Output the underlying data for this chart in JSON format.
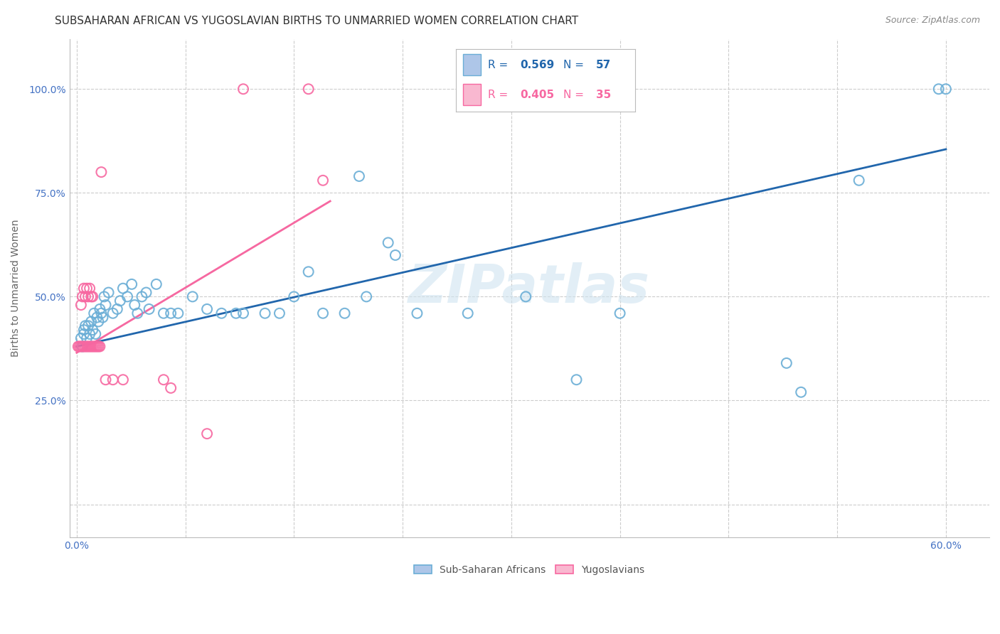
{
  "title": "SUBSAHARAN AFRICAN VS YUGOSLAVIAN BIRTHS TO UNMARRIED WOMEN CORRELATION CHART",
  "source": "Source: ZipAtlas.com",
  "ylabel": "Births to Unmarried Women",
  "blue_color": "#6baed6",
  "pink_color": "#f768a1",
  "trend_blue_color": "#2166ac",
  "trend_pink_color": "#cccccc",
  "watermark": "ZIPatlas",
  "xlim": [
    -0.005,
    0.63
  ],
  "ylim": [
    -0.08,
    1.12
  ],
  "ytick_vals": [
    0.0,
    0.25,
    0.5,
    0.75,
    1.0
  ],
  "ytick_labels": [
    "",
    "25.0%",
    "50.0%",
    "75.0%",
    "100.0%"
  ],
  "xtick_vals": [
    0.0,
    0.075,
    0.15,
    0.225,
    0.3,
    0.375,
    0.45,
    0.525,
    0.6
  ],
  "blue_trend_x": [
    0.0,
    0.6
  ],
  "blue_trend_y": [
    0.38,
    0.855
  ],
  "pink_trend_x": [
    0.0,
    0.175
  ],
  "pink_trend_y": [
    0.365,
    0.73
  ],
  "axis_color": "#4472c4",
  "tick_color": "#4472c4",
  "grid_color": "#cccccc",
  "background_color": "#ffffff",
  "title_fontsize": 11,
  "tick_fontsize": 10,
  "ylabel_fontsize": 10,
  "source_fontsize": 9,
  "blue_scatter_x": [
    0.003,
    0.004,
    0.005,
    0.005,
    0.006,
    0.007,
    0.008,
    0.009,
    0.01,
    0.011,
    0.012,
    0.013,
    0.014,
    0.015,
    0.016,
    0.017,
    0.018,
    0.019,
    0.02,
    0.022,
    0.025,
    0.028,
    0.03,
    0.032,
    0.035,
    0.038,
    0.04,
    0.042,
    0.045,
    0.048,
    0.05,
    0.055,
    0.06,
    0.065,
    0.07,
    0.08,
    0.09,
    0.1,
    0.11,
    0.115,
    0.13,
    0.14,
    0.15,
    0.16,
    0.17,
    0.185,
    0.195,
    0.2,
    0.215,
    0.22,
    0.235,
    0.27,
    0.31,
    0.345,
    0.375,
    0.49,
    0.5,
    0.54,
    0.595,
    0.6
  ],
  "blue_scatter_y": [
    0.4,
    0.38,
    0.42,
    0.41,
    0.43,
    0.4,
    0.43,
    0.41,
    0.44,
    0.42,
    0.46,
    0.41,
    0.45,
    0.44,
    0.47,
    0.46,
    0.45,
    0.5,
    0.48,
    0.51,
    0.46,
    0.47,
    0.49,
    0.52,
    0.5,
    0.53,
    0.48,
    0.46,
    0.5,
    0.51,
    0.47,
    0.53,
    0.46,
    0.46,
    0.46,
    0.5,
    0.47,
    0.46,
    0.46,
    0.46,
    0.46,
    0.46,
    0.5,
    0.56,
    0.46,
    0.46,
    0.79,
    0.5,
    0.63,
    0.6,
    0.46,
    0.46,
    0.5,
    0.3,
    0.46,
    0.34,
    0.27,
    0.78,
    1.0,
    1.0
  ],
  "pink_scatter_x": [
    0.001,
    0.002,
    0.003,
    0.004,
    0.005,
    0.006,
    0.007,
    0.008,
    0.009,
    0.01,
    0.011,
    0.012,
    0.013,
    0.014,
    0.015,
    0.016,
    0.003,
    0.004,
    0.005,
    0.006,
    0.007,
    0.008,
    0.009,
    0.01,
    0.011,
    0.017,
    0.02,
    0.025,
    0.032,
    0.06,
    0.065,
    0.09,
    0.115,
    0.16,
    0.17
  ],
  "pink_scatter_y": [
    0.38,
    0.38,
    0.38,
    0.38,
    0.38,
    0.38,
    0.38,
    0.38,
    0.38,
    0.38,
    0.38,
    0.38,
    0.38,
    0.38,
    0.38,
    0.38,
    0.48,
    0.5,
    0.52,
    0.5,
    0.52,
    0.5,
    0.52,
    0.5,
    0.5,
    0.8,
    0.3,
    0.3,
    0.3,
    0.3,
    0.28,
    0.17,
    1.0,
    1.0,
    0.78
  ]
}
